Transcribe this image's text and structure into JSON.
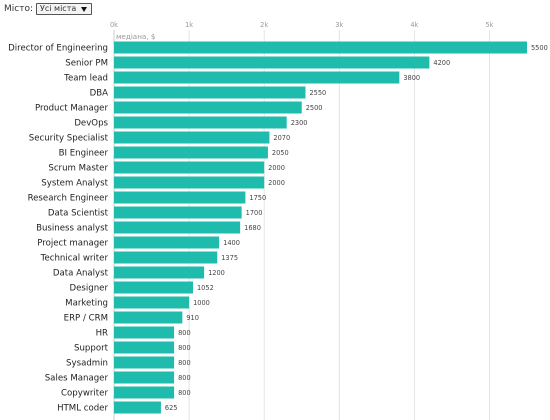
{
  "filter": {
    "label": "Місто:",
    "selected": "Усі міста"
  },
  "colors": {
    "bar": "#1fbcae",
    "grid": "#dddddd",
    "axis": "#cccccc"
  },
  "chart_data": {
    "type": "bar",
    "orientation": "horizontal",
    "title": "",
    "xlabel": "медіана, $",
    "ylabel": "",
    "xlim": [
      0,
      5500
    ],
    "ticks": [
      {
        "value": 0,
        "label": "0k"
      },
      {
        "value": 1000,
        "label": "1k"
      },
      {
        "value": 2000,
        "label": "2k"
      },
      {
        "value": 3000,
        "label": "3k"
      },
      {
        "value": 4000,
        "label": "4k"
      },
      {
        "value": 5000,
        "label": "5k"
      }
    ],
    "grid": true,
    "categories": [
      "Director of Engineering",
      "Senior PM",
      "Team lead",
      "DBA",
      "Product Manager",
      "DevOps",
      "Security Specialist",
      "BI Engineer",
      "Scrum Master",
      "System Analyst",
      "Research Engineer",
      "Data Scientist",
      "Business analyst",
      "Project manager",
      "Technical writer",
      "Data Analyst",
      "Designer",
      "Marketing",
      "ERP / CRM",
      "HR",
      "Support",
      "Sysadmin",
      "Sales Manager",
      "Copywriter",
      "HTML coder"
    ],
    "values": [
      5500,
      4200,
      3800,
      2550,
      2500,
      2300,
      2070,
      2050,
      2000,
      2000,
      1750,
      1700,
      1680,
      1400,
      1375,
      1200,
      1052,
      1000,
      910,
      800,
      800,
      800,
      800,
      800,
      625
    ]
  }
}
